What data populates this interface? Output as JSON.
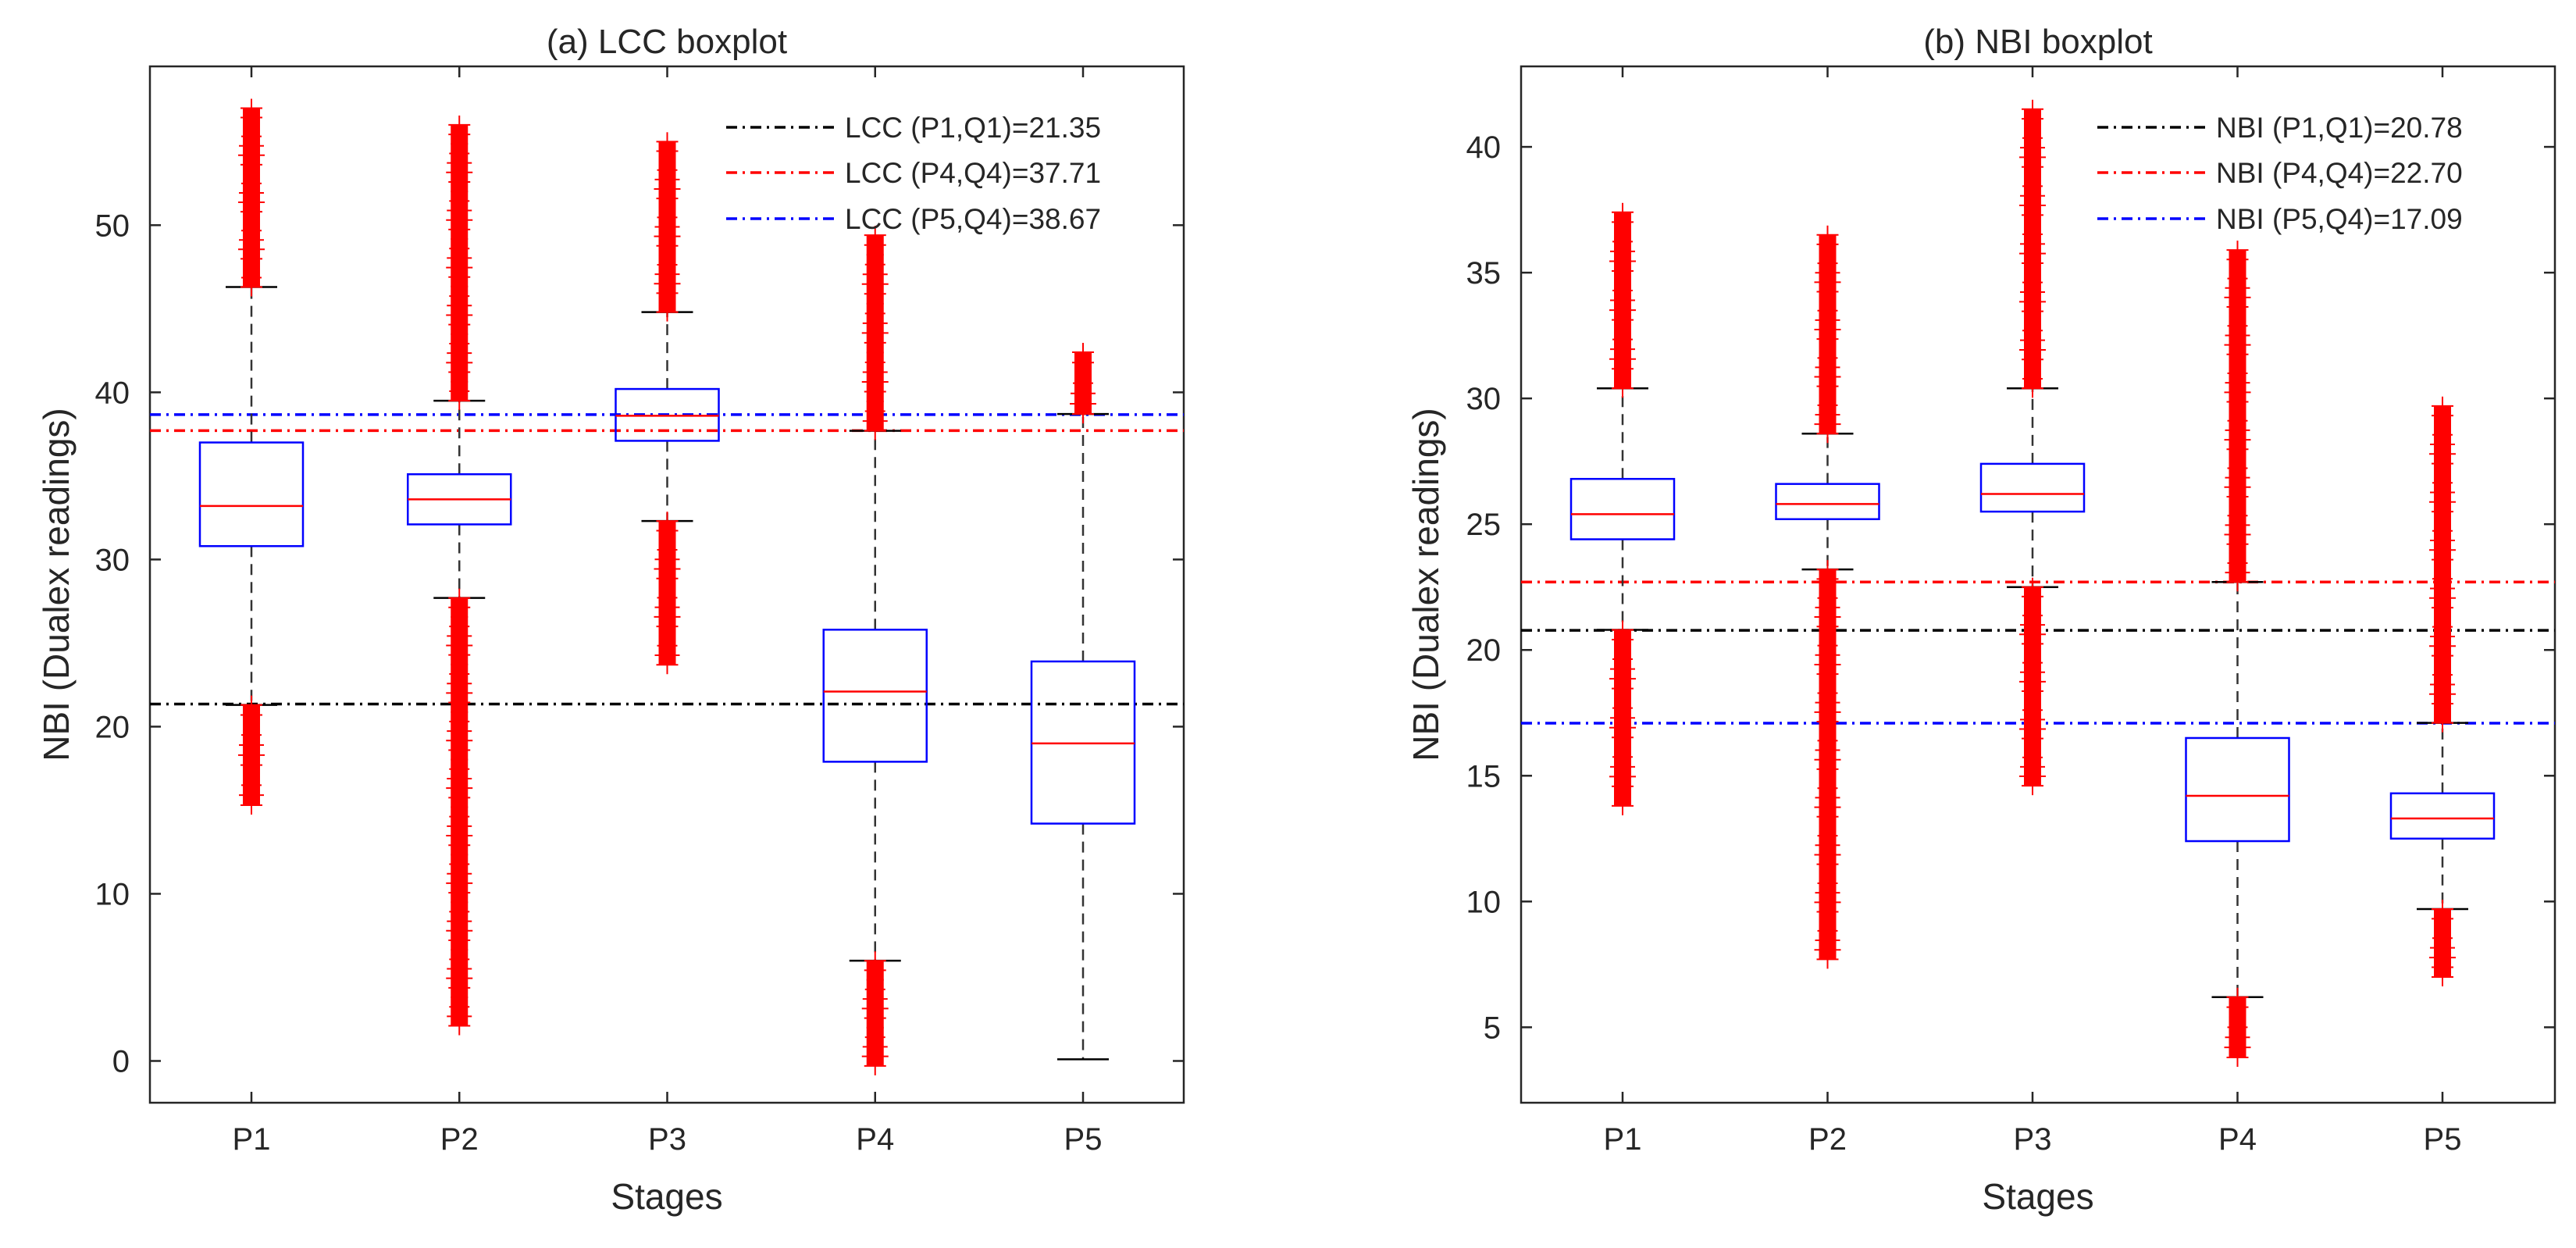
{
  "chart_data": [
    {
      "type": "boxplot",
      "title": "(a) LCC boxplot",
      "xlabel": "Stages",
      "ylabel": "NBI (Dualex readings)",
      "ylim": [
        -2.5,
        59.5
      ],
      "yticks": [
        0,
        10,
        20,
        30,
        40,
        50
      ],
      "categories": [
        "P1",
        "P2",
        "P3",
        "P4",
        "P5"
      ],
      "grid": false,
      "legend_position": "top-right",
      "colors": {
        "box": "#0000ff",
        "median": "#ff0000",
        "outlier": "#ff0000",
        "whisker": "#333333"
      },
      "boxes": [
        {
          "category": "P1",
          "whisker_low": 21.3,
          "q1": 30.8,
          "median": 33.2,
          "q3": 37.0,
          "whisker_high": 46.3,
          "outlier_ranges": [
            [
              15.3,
              21.3
            ],
            [
              46.3,
              57.0
            ]
          ]
        },
        {
          "category": "P2",
          "whisker_low": 27.7,
          "q1": 32.1,
          "median": 33.6,
          "q3": 35.1,
          "whisker_high": 39.5,
          "outlier_ranges": [
            [
              2.1,
              27.7
            ],
            [
              39.5,
              56.0
            ]
          ]
        },
        {
          "category": "P3",
          "whisker_low": 32.3,
          "q1": 37.1,
          "median": 38.6,
          "q3": 40.2,
          "whisker_high": 44.8,
          "outlier_ranges": [
            [
              23.7,
              32.3
            ],
            [
              44.8,
              55.0
            ]
          ]
        },
        {
          "category": "P4",
          "whisker_low": 6.0,
          "q1": 17.9,
          "median": 22.1,
          "q3": 25.8,
          "whisker_high": 37.7,
          "outlier_ranges": [
            [
              -0.3,
              6.0
            ],
            [
              37.7,
              49.4
            ]
          ]
        },
        {
          "category": "P5",
          "whisker_low": 0.1,
          "q1": 14.2,
          "median": 19.0,
          "q3": 23.9,
          "whisker_high": 38.7,
          "outlier_ranges": [
            [
              38.7,
              42.4
            ]
          ]
        }
      ],
      "reference_lines": [
        {
          "label": "LCC (P1,Q1)=21.35",
          "value": 21.35,
          "color": "#000000"
        },
        {
          "label": "LCC (P4,Q4)=37.71",
          "value": 37.71,
          "color": "#ff0000"
        },
        {
          "label": "LCC (P5,Q4)=38.67",
          "value": 38.67,
          "color": "#0000ff"
        }
      ]
    },
    {
      "type": "boxplot",
      "title": "(b) NBI boxplot",
      "xlabel": "Stages",
      "ylabel": "NBI (Dualex readings)",
      "ylim": [
        2.0,
        43.2
      ],
      "yticks": [
        5,
        10,
        15,
        20,
        25,
        30,
        35,
        40
      ],
      "categories": [
        "P1",
        "P2",
        "P3",
        "P4",
        "P5"
      ],
      "grid": false,
      "legend_position": "top-right",
      "colors": {
        "box": "#0000ff",
        "median": "#ff0000",
        "outlier": "#ff0000",
        "whisker": "#333333"
      },
      "boxes": [
        {
          "category": "P1",
          "whisker_low": 20.8,
          "q1": 24.4,
          "median": 25.4,
          "q3": 26.8,
          "whisker_high": 30.4,
          "outlier_ranges": [
            [
              13.8,
              20.8
            ],
            [
              30.4,
              37.4
            ]
          ]
        },
        {
          "category": "P2",
          "whisker_low": 23.2,
          "q1": 25.2,
          "median": 25.8,
          "q3": 26.6,
          "whisker_high": 28.6,
          "outlier_ranges": [
            [
              7.7,
              23.2
            ],
            [
              28.6,
              36.5
            ]
          ]
        },
        {
          "category": "P3",
          "whisker_low": 22.5,
          "q1": 25.5,
          "median": 26.2,
          "q3": 27.4,
          "whisker_high": 30.4,
          "outlier_ranges": [
            [
              14.6,
              22.5
            ],
            [
              30.4,
              41.5
            ]
          ]
        },
        {
          "category": "P4",
          "whisker_low": 6.2,
          "q1": 12.4,
          "median": 14.2,
          "q3": 16.5,
          "whisker_high": 22.7,
          "outlier_ranges": [
            [
              3.8,
              6.2
            ],
            [
              22.7,
              35.9
            ]
          ]
        },
        {
          "category": "P5",
          "whisker_low": 9.7,
          "q1": 12.5,
          "median": 13.3,
          "q3": 14.3,
          "whisker_high": 17.1,
          "outlier_ranges": [
            [
              7.0,
              9.7
            ],
            [
              17.1,
              29.7
            ]
          ]
        }
      ],
      "reference_lines": [
        {
          "label": "NBI (P1,Q1)=20.78",
          "value": 20.78,
          "color": "#000000"
        },
        {
          "label": "NBI (P4,Q4)=22.70",
          "value": 22.7,
          "color": "#ff0000"
        },
        {
          "label": "NBI (P5,Q4)=17.09",
          "value": 17.09,
          "color": "#0000ff"
        }
      ]
    }
  ]
}
